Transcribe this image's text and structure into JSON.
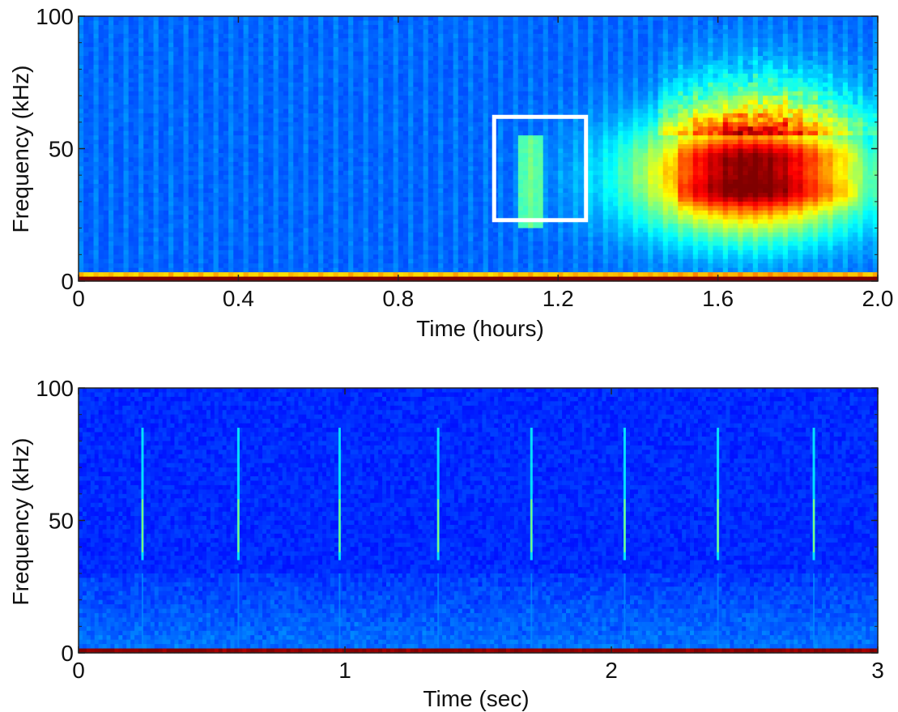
{
  "chart_data": [
    {
      "type": "heatmap",
      "xlabel": "Time (hours)",
      "ylabel": "Frequency (kHz)",
      "xlim": [
        0,
        2.0
      ],
      "ylim": [
        0,
        100
      ],
      "xticks": [
        "0",
        "0.4",
        "0.8",
        "1.2",
        "1.6",
        "2.0"
      ],
      "xtick_values": [
        0,
        0.4,
        0.8,
        1.2,
        1.6,
        2.0
      ],
      "yticks": [
        "0",
        "50",
        "100"
      ],
      "ytick_values": [
        0,
        50,
        100
      ],
      "colormap": "jet",
      "background_color": "#2d4bad",
      "features": [
        {
          "kind": "low-frequency band",
          "t_range": [
            0,
            2.0
          ],
          "f_range": [
            0,
            2
          ],
          "intensity": 1.0
        },
        {
          "kind": "calls",
          "t_range": [
            1.1,
            1.16
          ],
          "f_range": [
            20,
            55
          ],
          "intensity": 0.45
        },
        {
          "kind": "broadband chorus",
          "t_center": 1.68,
          "f_center": 40,
          "t_spread": 0.28,
          "f_spread": 22,
          "intensity": 0.75
        },
        {
          "kind": "broadband chorus tail",
          "t_range": [
            1.45,
            2.0
          ],
          "f_range": [
            55,
            100
          ],
          "intensity": 0.35
        }
      ],
      "highlight_box": {
        "t_range": [
          1.04,
          1.27
        ],
        "f_range": [
          23,
          62
        ],
        "color": "#ffffff"
      }
    },
    {
      "type": "heatmap",
      "xlabel": "Time (sec)",
      "ylabel": "Frequency (kHz)",
      "xlim": [
        0,
        3
      ],
      "ylim": [
        0,
        100
      ],
      "xticks": [
        "0",
        "1",
        "2",
        "3"
      ],
      "xtick_values": [
        0,
        1,
        2,
        3
      ],
      "yticks": [
        "0",
        "50",
        "100"
      ],
      "ytick_values": [
        0,
        50,
        100
      ],
      "colormap": "jet",
      "background_color": "#22369e",
      "call_times_sec": [
        0.24,
        0.6,
        0.98,
        1.35,
        1.7,
        2.05,
        2.4,
        2.76
      ],
      "call_f_range_khz": [
        35,
        85
      ],
      "features": [
        {
          "kind": "low-frequency band",
          "t_range": [
            0,
            3
          ],
          "f_range": [
            0,
            1
          ],
          "intensity": 0.9
        }
      ]
    }
  ]
}
